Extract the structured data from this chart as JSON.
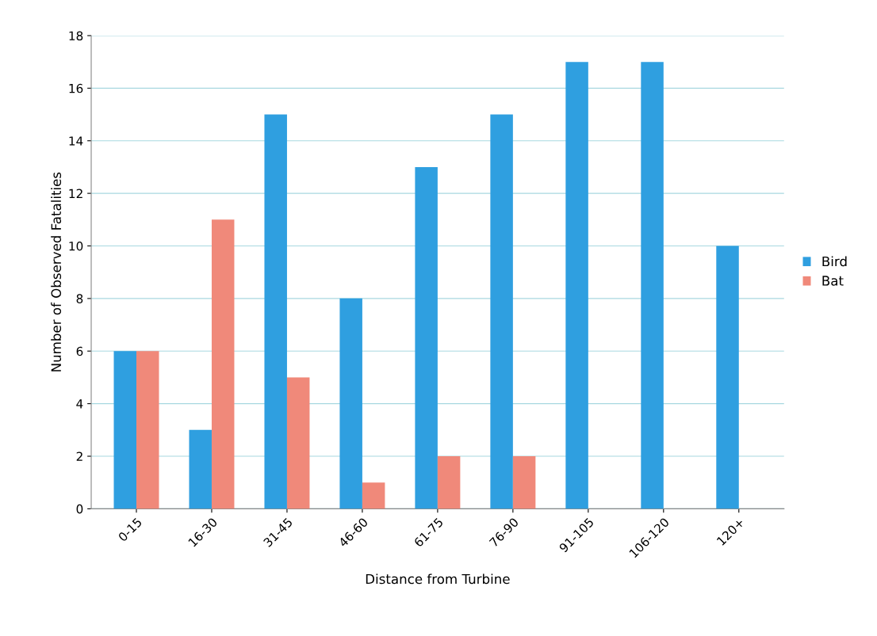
{
  "chart_data": {
    "type": "bar",
    "xlabel": "Distance from Turbine",
    "ylabel": "Number of Observed Fatalities",
    "categories": [
      "0-15",
      "16-30",
      "31-45",
      "46-60",
      "61-75",
      "76-90",
      "91-105",
      "106-120",
      "120+"
    ],
    "series": [
      {
        "name": "Bird",
        "color": "#2f9fe0",
        "values": [
          6,
          3,
          15,
          8,
          13,
          15,
          17,
          17,
          10
        ]
      },
      {
        "name": "Bat",
        "color": "#f0897a",
        "values": [
          6,
          11,
          5,
          1,
          2,
          2,
          null,
          null,
          null
        ]
      }
    ],
    "ylim": [
      0,
      18
    ],
    "yticks": [
      0,
      2,
      4,
      6,
      8,
      10,
      12,
      14,
      16,
      18
    ],
    "grid": "y",
    "legend": "right"
  }
}
